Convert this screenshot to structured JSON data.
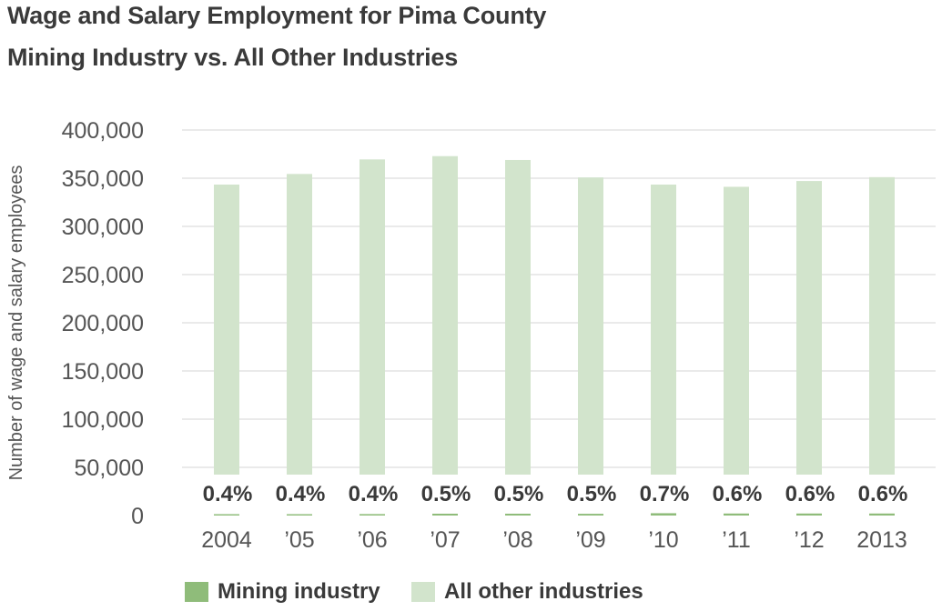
{
  "header": {
    "title_line1": "Wage and Salary Employment for Pima County",
    "title_line2": "Mining Industry vs. All Other Industries"
  },
  "colors": {
    "mining": "#8fbc7a",
    "other": "#d2e4cc",
    "grid": "#e3e3e3",
    "text": "#555555"
  },
  "chart_data": {
    "type": "bar",
    "stacked": true,
    "title": "Wage and Salary Employment for Pima County Mining Industry vs. All Other Industries",
    "xlabel": "",
    "ylabel": "Number of wage and salary employees",
    "ylim": [
      0,
      400000
    ],
    "yticks": [
      0,
      50000,
      100000,
      150000,
      200000,
      250000,
      300000,
      350000,
      400000
    ],
    "ytick_labels": [
      "0",
      "50,000",
      "100,000",
      "150,000",
      "200,000",
      "250,000",
      "300,000",
      "350,000",
      "400,000"
    ],
    "categories": [
      "2004",
      "’05",
      "’06",
      "’07",
      "’08",
      "’09",
      "’10",
      "’11",
      "’12",
      "2013"
    ],
    "grid": true,
    "legend_position": "bottom",
    "series": [
      {
        "name": "Mining industry",
        "values": [
          1400,
          1400,
          1500,
          1900,
          1900,
          1800,
          2400,
          2100,
          2100,
          2100
        ]
      },
      {
        "name": "All other industries",
        "values": [
          342000,
          353000,
          368000,
          371000,
          367000,
          349000,
          341000,
          339000,
          345000,
          349000
        ]
      }
    ],
    "annotations": [
      "0.4%",
      "0.4%",
      "0.4%",
      "0.5%",
      "0.5%",
      "0.5%",
      "0.7%",
      "0.6%",
      "0.6%",
      "0.6%"
    ]
  }
}
